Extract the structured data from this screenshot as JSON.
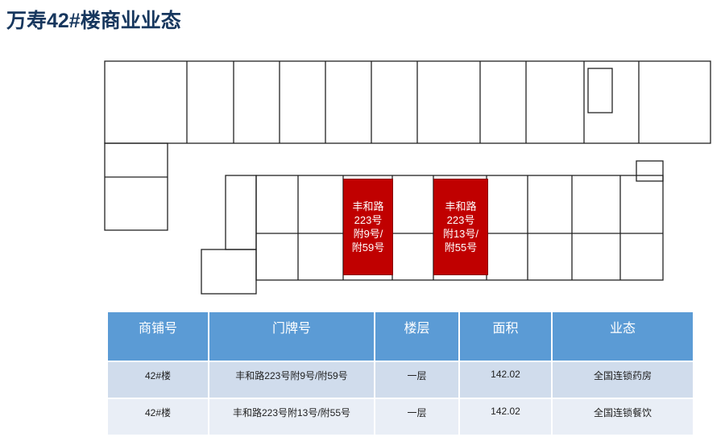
{
  "title": "万寿42#楼商业业态",
  "plan": {
    "shops": [
      {
        "label": "丰和路\n223号\n附9号/\n附59号",
        "color": "#c00000"
      },
      {
        "label": "丰和路\n223号\n附13号/\n附55号",
        "color": "#c00000"
      }
    ]
  },
  "table": {
    "headers": [
      "商铺号",
      "门牌号",
      "楼层",
      "面积",
      "业态"
    ],
    "rows": [
      [
        "42#楼",
        "丰和路223号附9号/附59号",
        "一层",
        "142.02",
        "全国连锁药房"
      ],
      [
        "42#楼",
        "丰和路223号附13号/附55号",
        "一层",
        "142.02",
        "全国连锁餐饮"
      ]
    ],
    "header_color": "#5b9bd5"
  }
}
